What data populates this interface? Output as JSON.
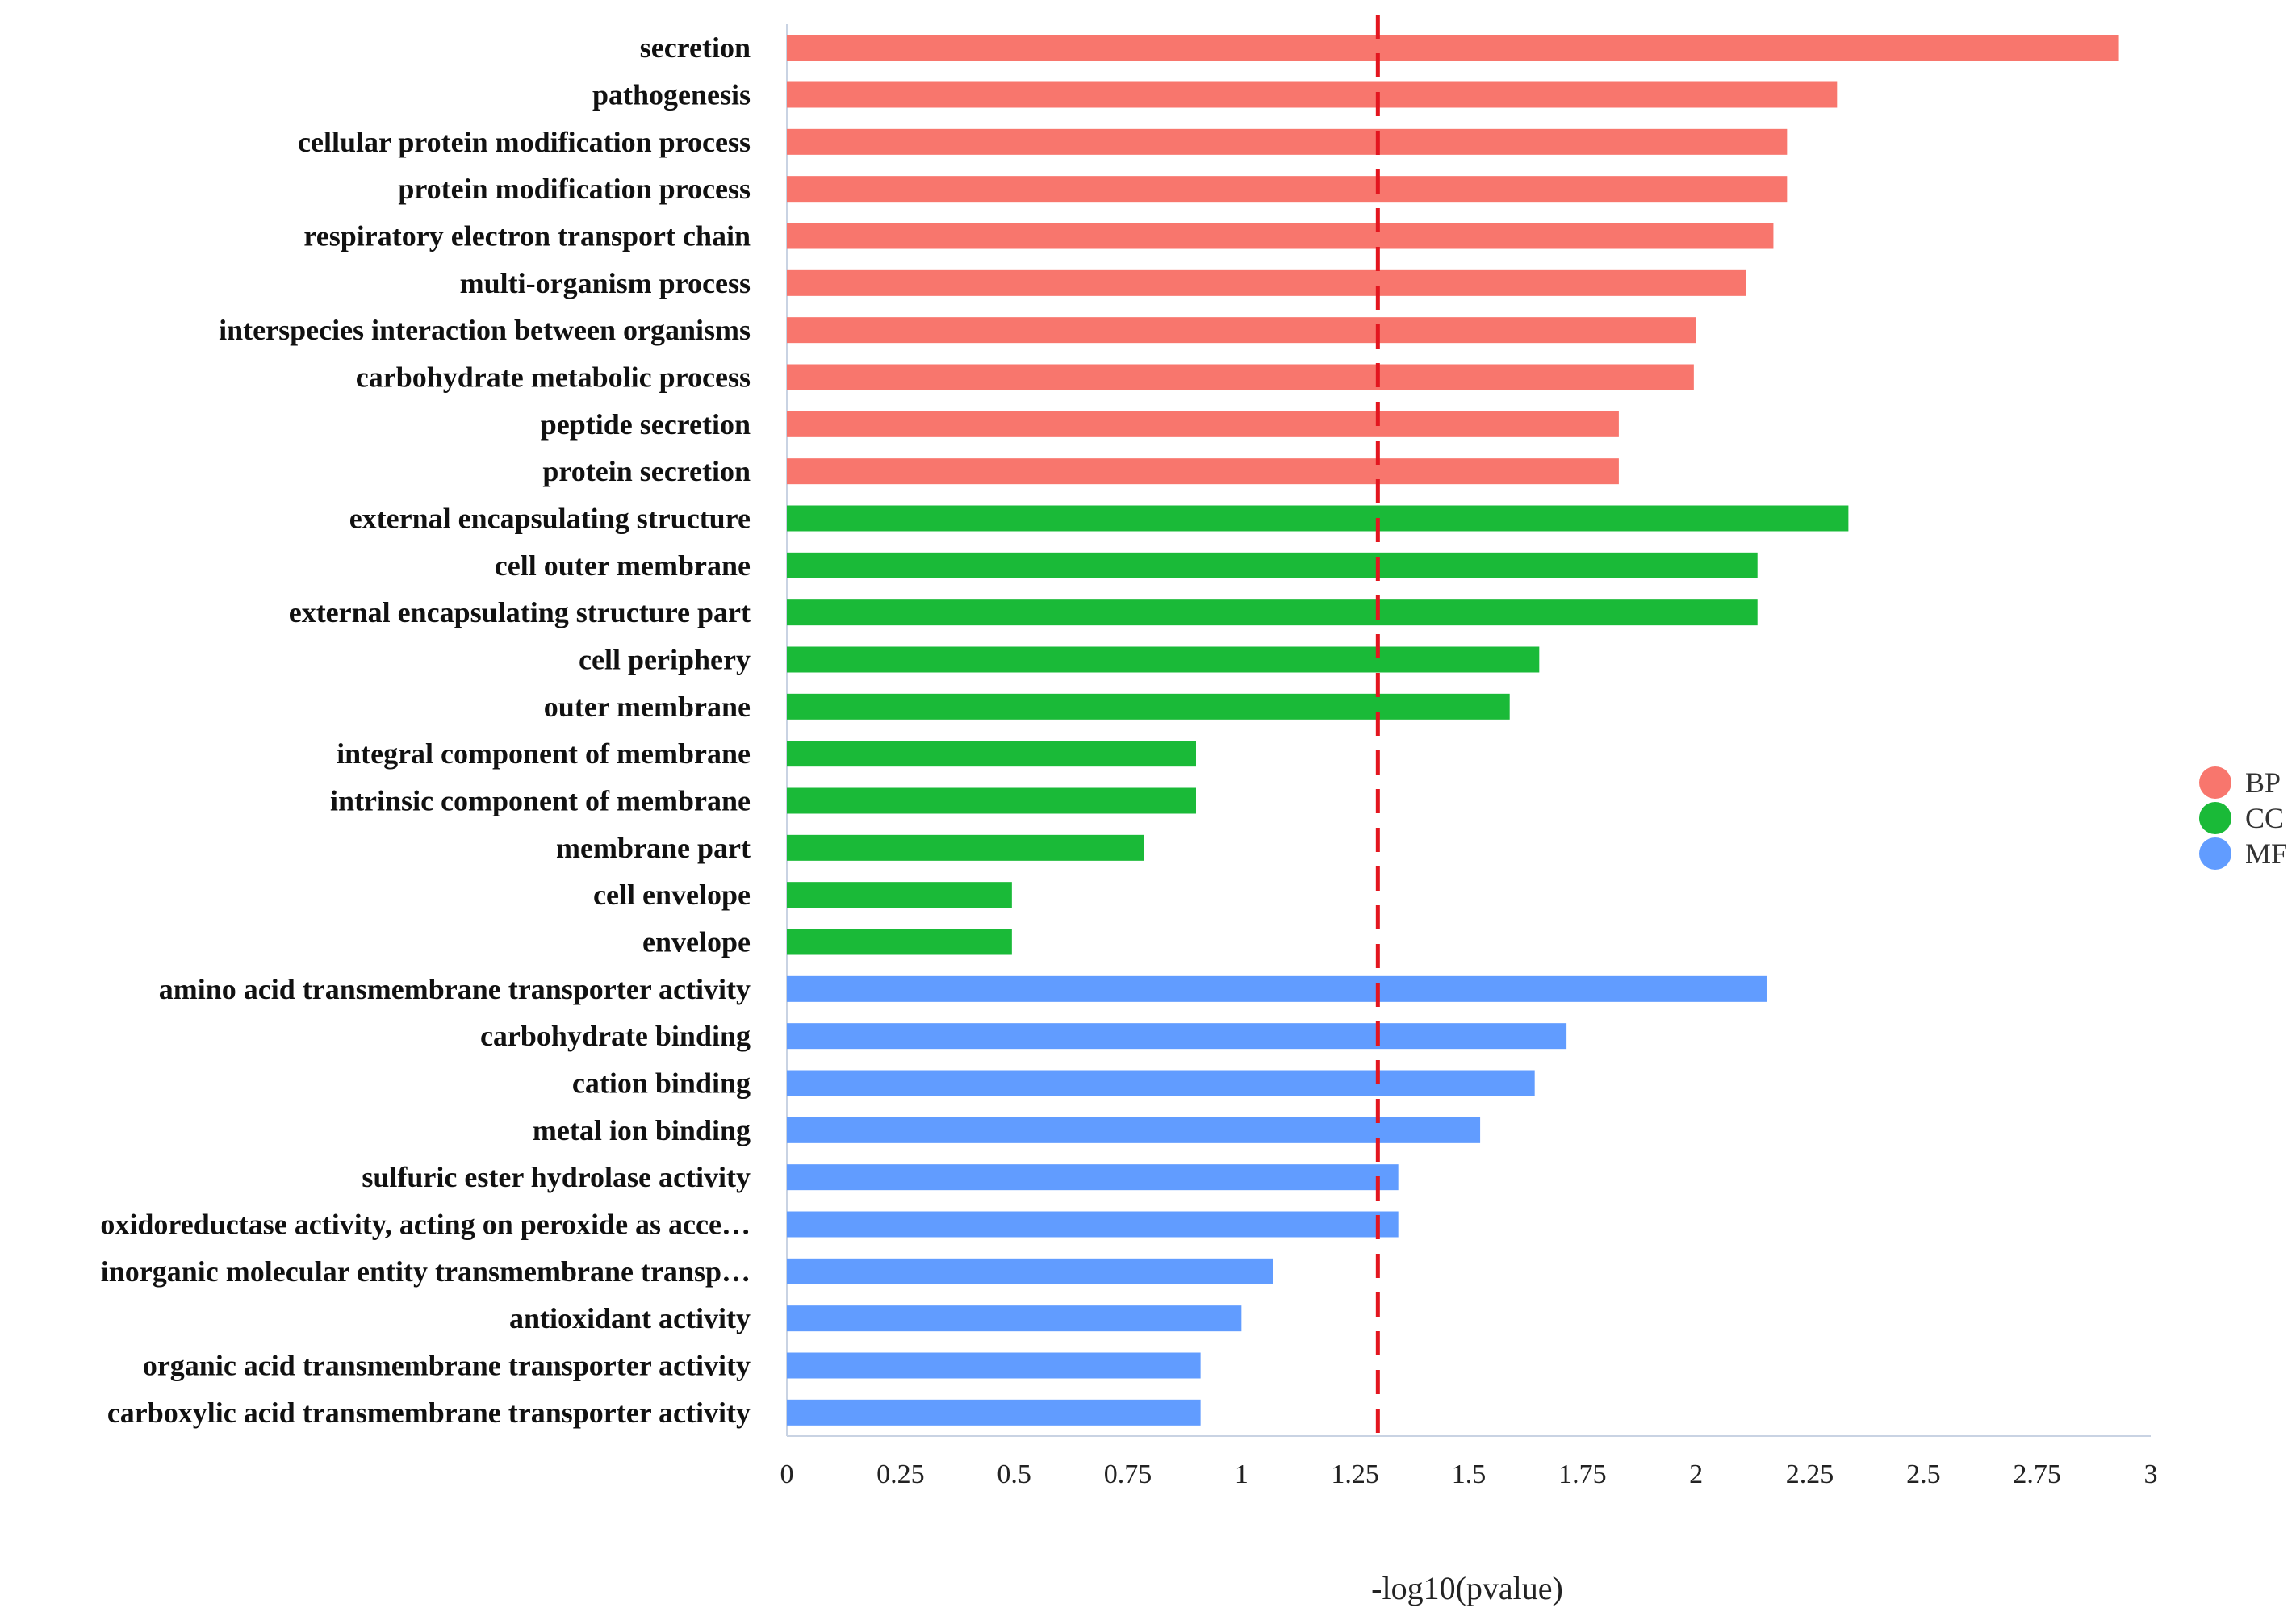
{
  "chart_data": {
    "type": "bar",
    "orientation": "horizontal",
    "xlabel": "-log10(pvalue)",
    "xlim": [
      0,
      3
    ],
    "xticks": [
      0,
      0.25,
      0.5,
      0.75,
      1,
      1.25,
      1.5,
      1.75,
      2,
      2.25,
      2.5,
      2.75,
      3
    ],
    "xtick_labels": [
      "0",
      "0.25",
      "0.5",
      "0.75",
      "1",
      "1.25",
      "1.5",
      "1.75",
      "2",
      "2.25",
      "2.5",
      "2.75",
      "3"
    ],
    "threshold": {
      "value": 1.3,
      "color": "#e3161f",
      "style": "dashed"
    },
    "legend": [
      {
        "key": "BP",
        "label": "BP",
        "color": "#f8766d"
      },
      {
        "key": "CC",
        "label": "CC",
        "color": "#1aba38"
      },
      {
        "key": "MF",
        "label": "MF",
        "color": "#619cff"
      }
    ],
    "categories": [
      "secretion",
      "pathogenesis",
      "cellular protein modification process",
      "protein modification process",
      "respiratory electron transport chain",
      "multi-organism process",
      "interspecies interaction between organisms",
      "carbohydrate metabolic process",
      "peptide secretion",
      "protein secretion",
      "external encapsulating structure",
      "cell outer membrane",
      "external encapsulating structure part",
      "cell periphery",
      "outer membrane",
      "integral component of membrane",
      "intrinsic component of membrane",
      "membrane part",
      "cell envelope",
      "envelope",
      "amino acid transmembrane transporter activity",
      "carbohydrate binding",
      "cation binding",
      "metal ion binding",
      "sulfuric ester hydrolase activity",
      "oxidoreductase activity, acting on peroxide as acce…",
      "inorganic molecular entity transmembrane transp…",
      "antioxidant activity",
      "organic acid transmembrane transporter activity",
      "carboxylic acid transmembrane transporter activity"
    ],
    "groups": [
      "BP",
      "BP",
      "BP",
      "BP",
      "BP",
      "BP",
      "BP",
      "BP",
      "BP",
      "BP",
      "CC",
      "CC",
      "CC",
      "CC",
      "CC",
      "CC",
      "CC",
      "CC",
      "CC",
      "CC",
      "MF",
      "MF",
      "MF",
      "MF",
      "MF",
      "MF",
      "MF",
      "MF",
      "MF",
      "MF"
    ],
    "values": [
      2.93,
      2.31,
      2.2,
      2.2,
      2.17,
      2.11,
      2.0,
      1.995,
      1.83,
      1.83,
      2.335,
      2.135,
      2.135,
      1.655,
      1.59,
      0.9,
      0.9,
      0.785,
      0.495,
      0.495,
      2.155,
      1.715,
      1.645,
      1.525,
      1.345,
      1.345,
      1.07,
      1.0,
      0.91,
      0.91
    ]
  }
}
